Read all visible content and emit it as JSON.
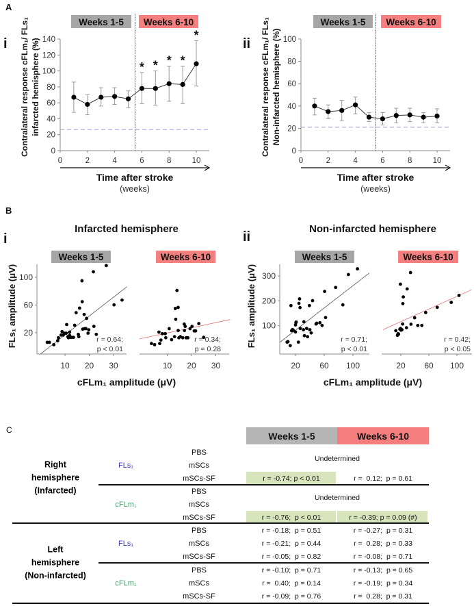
{
  "chart_data": [
    {
      "type": "line",
      "panel_label": "A",
      "sub_label": "i",
      "period_labels": [
        "Weeks 1-5",
        "Weeks 6-10"
      ],
      "period_colors": [
        "#a6a6a6",
        "#f37f7f"
      ],
      "x": [
        1,
        2,
        3,
        4,
        5,
        6,
        7,
        8,
        9,
        10
      ],
      "y": [
        67,
        58,
        67,
        68,
        65,
        78,
        78,
        84,
        83,
        109
      ],
      "error_upper": [
        86,
        70,
        79,
        79,
        75,
        98,
        100,
        106,
        106,
        138
      ],
      "error_lower": [
        48,
        45,
        56,
        58,
        54,
        59,
        57,
        62,
        59,
        81
      ],
      "significant_x": [
        6,
        7,
        8,
        9,
        10
      ],
      "significance_marker": "*",
      "baseline_dashed": 26.5,
      "period_divider_x": 5.5,
      "xlim": [
        0,
        11
      ],
      "ylim": [
        0,
        140
      ],
      "xticks": [
        "0",
        "2",
        "4",
        "6",
        "8",
        "10"
      ],
      "yticks": [
        "0",
        "20",
        "40",
        "60",
        "80",
        "100",
        "120",
        "140"
      ],
      "ylabel": [
        "Contralateral response cFLm₁/ FLs₁",
        "infarcted hemisphere (%)"
      ],
      "xlabel": "Time after stroke",
      "xlabel_units": "(weeks)"
    },
    {
      "type": "line",
      "sub_label": "ii",
      "period_labels": [
        "Weeks 1-5",
        "Weeks 6-10"
      ],
      "period_colors": [
        "#a6a6a6",
        "#f37f7f"
      ],
      "x": [
        1,
        2,
        3,
        4,
        5,
        6,
        7,
        8,
        9,
        10
      ],
      "y": [
        40,
        35,
        36,
        41,
        30,
        28.5,
        31.5,
        32,
        30,
        31
      ],
      "error_upper": [
        47,
        41,
        45,
        48,
        34,
        34,
        38,
        38,
        34,
        37.5
      ],
      "error_lower": [
        32,
        28.5,
        27,
        33,
        26,
        23,
        25,
        26,
        25,
        25
      ],
      "significant_x": [],
      "baseline_dashed": 21,
      "period_divider_x": 5.5,
      "xlim": [
        0,
        11
      ],
      "ylim": [
        0,
        100
      ],
      "xticks": [
        "0",
        "2",
        "4",
        "6",
        "8",
        "10"
      ],
      "yticks": [
        "0",
        "20",
        "40",
        "60",
        "80",
        "100"
      ],
      "ylabel": [
        "Contralateral response cFLm₁/ FLs₁",
        "Non-infarcted hemisphere (%)"
      ],
      "xlabel": "Time after stroke",
      "xlabel_units": "(weeks)"
    },
    {
      "type": "scatter",
      "panel_label": "B",
      "sub_label": "i",
      "title": "Infarcted hemisphere",
      "period_label": "Weeks 1-5",
      "period_color": "#a6a6a6",
      "ylabel": "FLs₁ amplitude (μV)",
      "xlabel": "cFLm₁ amplitude  (μV)",
      "xticks": [
        "10",
        "20",
        "30"
      ],
      "yticks": [
        "20",
        "60",
        "100"
      ],
      "points": [
        [
          2.7,
          6
        ],
        [
          3.6,
          6
        ],
        [
          5.4,
          2.6
        ],
        [
          7,
          8.3
        ],
        [
          7.3,
          12.6
        ],
        [
          8.4,
          16.5
        ],
        [
          8.8,
          21.5
        ],
        [
          9.3,
          16.5
        ],
        [
          9.8,
          19.2
        ],
        [
          10.5,
          19.2
        ],
        [
          11.2,
          14.2
        ],
        [
          11.4,
          12.6
        ],
        [
          11.9,
          15.9
        ],
        [
          11.9,
          20.8
        ],
        [
          12.4,
          13.2
        ],
        [
          12.7,
          13.2
        ],
        [
          13.5,
          13.2
        ],
        [
          10.7,
          31.7
        ],
        [
          14,
          30.7
        ],
        [
          14.6,
          48.9
        ],
        [
          15.5,
          17.5
        ],
        [
          15.7,
          14.2
        ],
        [
          16,
          55.5
        ],
        [
          17,
          95
        ],
        [
          17.1,
          64.8
        ],
        [
          17.9,
          46.3
        ],
        [
          17.3,
          25.1
        ],
        [
          18.1,
          25.8
        ],
        [
          18.6,
          25.8
        ],
        [
          18.9,
          40.7
        ],
        [
          19.5,
          19.2
        ],
        [
          19.8,
          24.1
        ],
        [
          21.7,
          108
        ],
        [
          21.9,
          29.1
        ],
        [
          22.9,
          17.5
        ],
        [
          27,
          117
        ],
        [
          30.2,
          60.2
        ],
        [
          33.5,
          67.1
        ]
      ],
      "fit": {
        "slope": 2.73,
        "intercept": -10.6,
        "x_range": [
          0,
          35.5
        ],
        "color": "#555555"
      },
      "stats": [
        "r = 0.64;",
        "p < 0.01"
      ]
    },
    {
      "type": "scatter",
      "period_label": "Weeks 6-10",
      "period_color": "#f37f7f",
      "xticks": [
        "10",
        "20",
        "30"
      ],
      "points": [
        [
          3.5,
          4.3
        ],
        [
          4.8,
          2.6
        ],
        [
          6.6,
          20.8
        ],
        [
          6.9,
          4.3
        ],
        [
          7.4,
          9.3
        ],
        [
          8,
          18.5
        ],
        [
          9.2,
          18.5
        ],
        [
          9.4,
          12.6
        ],
        [
          10.8,
          25.8
        ],
        [
          11.8,
          9.9
        ],
        [
          13,
          14.2
        ],
        [
          13.3,
          54.9
        ],
        [
          13.5,
          39.3
        ],
        [
          14.5,
          56.5
        ],
        [
          14.5,
          23.1
        ],
        [
          14,
          81
        ],
        [
          14.8,
          12.6
        ],
        [
          15.4,
          14.2
        ],
        [
          16.4,
          12.6
        ],
        [
          17,
          32.4
        ],
        [
          17.1,
          23.1
        ],
        [
          17.4,
          29.1
        ],
        [
          17.8,
          12.6
        ],
        [
          18.5,
          12.6
        ],
        [
          19.4,
          25.8
        ],
        [
          20.2,
          29.1
        ],
        [
          21.1,
          22.5
        ],
        [
          21.7,
          22.5
        ],
        [
          23,
          33.1
        ],
        [
          25,
          13.2
        ]
      ],
      "fit": {
        "slope": 0.75,
        "intercept": 12,
        "x_range": [
          -1.5,
          35.9
        ],
        "color": "#e07070"
      },
      "stats": [
        "r = 0.34;",
        "p = 0.28"
      ]
    },
    {
      "type": "scatter",
      "sub_label": "ii",
      "title": "Non-infarcted hemisphere",
      "period_label": "Weeks 1-5",
      "period_color": "#a6a6a6",
      "ylabel": "FLs₁ amplitude (μV)",
      "xlabel": "cFLm₁ amplitude  (μV)",
      "xticks": [
        "20",
        "60",
        "100"
      ],
      "yticks": [
        "100",
        "200",
        "300"
      ],
      "points": [
        [
          8.3,
          34
        ],
        [
          9.5,
          36
        ],
        [
          12.7,
          20
        ],
        [
          13.7,
          181
        ],
        [
          14.6,
          80
        ],
        [
          15.9,
          85
        ],
        [
          16.8,
          82
        ],
        [
          20,
          103
        ],
        [
          20.6,
          112
        ],
        [
          21,
          115
        ],
        [
          20,
          75
        ],
        [
          25.7,
          208
        ],
        [
          24.8,
          190
        ],
        [
          26.3,
          173
        ],
        [
          26.7,
          89
        ],
        [
          24.1,
          34
        ],
        [
          31.7,
          116
        ],
        [
          31.1,
          84
        ],
        [
          32.4,
          60
        ],
        [
          35.6,
          89
        ],
        [
          36.8,
          56
        ],
        [
          39.4,
          181
        ],
        [
          40,
          84
        ],
        [
          41.9,
          71
        ],
        [
          43.8,
          201
        ],
        [
          48.6,
          107
        ],
        [
          49.5,
          110
        ],
        [
          54,
          112
        ],
        [
          57.1,
          101
        ],
        [
          60.6,
          238
        ],
        [
          61.9,
          133
        ],
        [
          75.9,
          254
        ],
        [
          86,
          184
        ],
        [
          93.7,
          306
        ],
        [
          106.3,
          329
        ]
      ],
      "fit": {
        "slope": 2.24,
        "intercept": 37,
        "x_range": [
          -1.3,
          123
        ],
        "color": "#555555"
      },
      "stats": [
        "r = 0.71;",
        "p < 0.01"
      ]
    },
    {
      "type": "scatter",
      "period_label": "Weeks 6-10",
      "period_color": "#f37f7f",
      "xticks": [
        "20",
        "60",
        "100"
      ],
      "points": [
        [
          12.9,
          80
        ],
        [
          15.2,
          61.5
        ],
        [
          16.1,
          68
        ],
        [
          16.8,
          66
        ],
        [
          18.7,
          86
        ],
        [
          19.7,
          89
        ],
        [
          20.3,
          82
        ],
        [
          21.6,
          84
        ],
        [
          22.6,
          107
        ],
        [
          19.4,
          267
        ],
        [
          23.5,
          216
        ],
        [
          22.9,
          189
        ],
        [
          29,
          248
        ],
        [
          28.1,
          92
        ],
        [
          34.5,
          106
        ],
        [
          39.7,
          132
        ],
        [
          44.2,
          101
        ],
        [
          50,
          101
        ],
        [
          55.5,
          153
        ],
        [
          71.9,
          174
        ],
        [
          91.9,
          194
        ],
        [
          103,
          222
        ],
        [
          33.9,
          314
        ]
      ],
      "fit": {
        "slope": 1.27,
        "intercept": 91,
        "x_range": [
          -5.5,
          121
        ],
        "color": "#e07070"
      },
      "stats": [
        "r = 0.42;",
        "p < 0.05"
      ]
    }
  ],
  "table": {
    "panel_label": "C",
    "column_headers": [
      "Weeks 1-5",
      "Weeks 6-10"
    ],
    "header_colors": [
      "#b5b5b5",
      "#f47d7d"
    ],
    "highlight_color": "#d8e4bc",
    "sections": [
      {
        "hemisphere": [
          "Right",
          "hemisphere",
          "(Infarcted)"
        ],
        "groups": [
          {
            "measure": "FLs₁",
            "measure_color": "#3a3ab8",
            "conditions": [
              "PBS",
              "mSCs",
              "mSCs-SF"
            ],
            "merged_note": "Undetermined",
            "rows": [
              [
                "",
                ""
              ],
              [
                "",
                ""
              ],
              [
                "r = -0.74; p < 0.01",
                "r =  0.12;  p = 0.61"
              ]
            ],
            "highlighted": [
              [
                false,
                false
              ],
              [
                false,
                false
              ],
              [
                true,
                false
              ]
            ]
          },
          {
            "measure": "cFLm₁",
            "measure_color": "#33a866",
            "conditions": [
              "PBS",
              "mSCs",
              "mSCs-SF"
            ],
            "merged_note": "Undetermined",
            "rows": [
              [
                "",
                ""
              ],
              [
                "",
                ""
              ],
              [
                "r = -0.76;  p < 0.01",
                "r = -0.39; p = 0.09 (#)"
              ]
            ],
            "highlighted": [
              [
                false,
                false
              ],
              [
                false,
                false
              ],
              [
                true,
                true
              ]
            ]
          }
        ]
      },
      {
        "hemisphere": [
          "Left",
          "hemisphere",
          "(Non-infarcted)"
        ],
        "groups": [
          {
            "measure": "FLs₁",
            "measure_color": "#3a3ab8",
            "conditions": [
              "PBS",
              "mSCs",
              "mSCs-SF"
            ],
            "merged_note": "",
            "rows": [
              [
                "r = -0.18;  p = 0.51",
                "r = -0.27;  p = 0.31"
              ],
              [
                "r = -0.21;  p = 0.44",
                "r =  0.28;  p = 0.33"
              ],
              [
                "r = -0.05;  p = 0.82",
                "r = -0.08;  p = 0.71"
              ]
            ],
            "highlighted": [
              [
                false,
                false
              ],
              [
                false,
                false
              ],
              [
                false,
                false
              ]
            ]
          },
          {
            "measure": "cFLm₁",
            "measure_color": "#33a866",
            "conditions": [
              "PBS",
              "mSCs",
              "mSCs-SF"
            ],
            "merged_note": "",
            "rows": [
              [
                "r = -0.10;  p = 0.71",
                "r = -0.13;  p = 0.65"
              ],
              [
                "r =  0.40;  p = 0.14",
                "r = -0.19;  p = 0.34"
              ],
              [
                "r = -0.09;  p = 0.76",
                "r =  0.28;  p = 0.31"
              ]
            ],
            "highlighted": [
              [
                false,
                false
              ],
              [
                false,
                false
              ],
              [
                false,
                false
              ]
            ]
          }
        ]
      }
    ]
  }
}
